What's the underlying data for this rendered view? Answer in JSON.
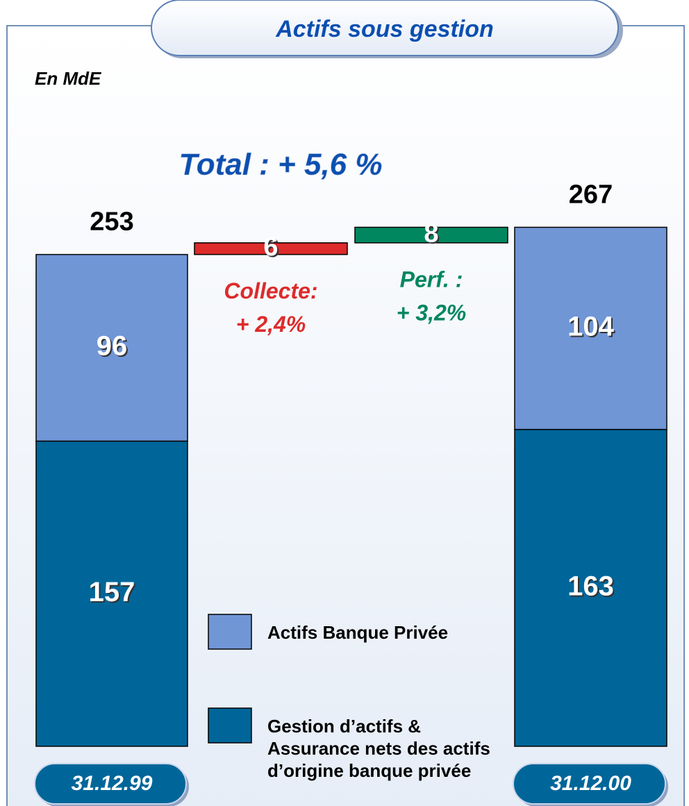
{
  "chart_data": {
    "type": "waterfall",
    "title": "Actifs sous gestion",
    "unit_label": "En MdE",
    "subtitle": "Total : + 5,6 %",
    "categories": [
      "31.12.99",
      null,
      null,
      "31.12.00"
    ],
    "series": [
      {
        "name": "Gestion d’actifs & Assurance nets des actifs d’origine banque privée",
        "color": "#006699",
        "values": [
          157,
          null,
          null,
          163
        ]
      },
      {
        "name": "Actifs Banque Privée",
        "color": "#7096d6",
        "values": [
          96,
          null,
          null,
          104
        ]
      }
    ],
    "totals": [
      253,
      null,
      null,
      267
    ],
    "changes": [
      {
        "name": "Collecte:",
        "note": "+ 2,4%",
        "value": 6,
        "color": "#dd2b2b",
        "text_color": "#dd2b2b"
      },
      {
        "name": "Perf. :",
        "note": "+ 3,2%",
        "value": 8,
        "color": "#00875f",
        "text_color": "#00875f"
      }
    ],
    "ylim": [
      0,
      270
    ]
  }
}
